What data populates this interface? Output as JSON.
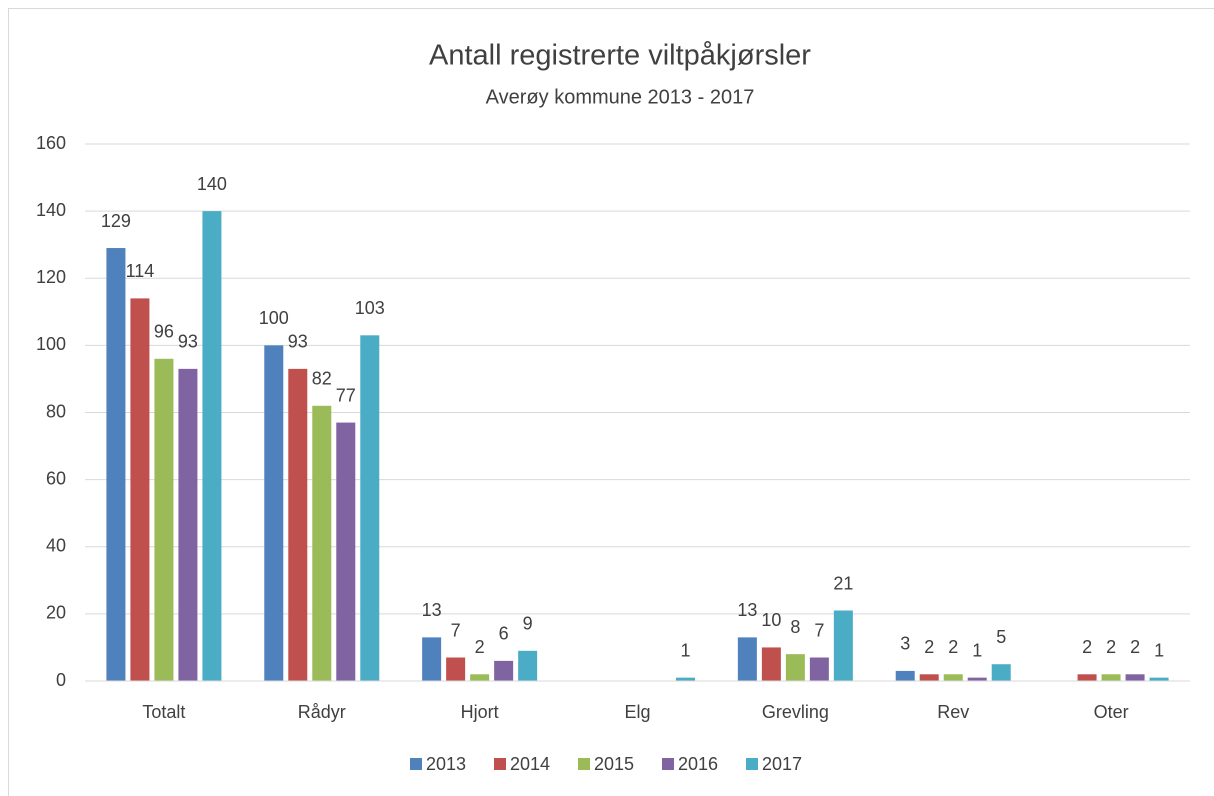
{
  "chart_data": {
    "type": "bar",
    "title": "Antall registrerte viltpåkjørsler",
    "subtitle": "Averøy kommune 2013 - 2017",
    "categories": [
      "Totalt",
      "Rådyr",
      "Hjort",
      "Elg",
      "Grevling",
      "Rev",
      "Oter"
    ],
    "series": [
      {
        "name": "2013",
        "color": "#4f81bd",
        "values": [
          129,
          100,
          13,
          null,
          13,
          3,
          null
        ]
      },
      {
        "name": "2014",
        "color": "#c0504d",
        "values": [
          114,
          93,
          7,
          null,
          10,
          2,
          2
        ]
      },
      {
        "name": "2015",
        "color": "#9bbb59",
        "values": [
          96,
          82,
          2,
          null,
          8,
          2,
          2
        ]
      },
      {
        "name": "2016",
        "color": "#8064a2",
        "values": [
          93,
          77,
          6,
          null,
          7,
          1,
          2
        ]
      },
      {
        "name": "2017",
        "color": "#4bacc6",
        "values": [
          140,
          103,
          9,
          1,
          21,
          5,
          1
        ]
      }
    ],
    "ylim": [
      0,
      160
    ],
    "yticks": [
      0,
      20,
      40,
      60,
      80,
      100,
      120,
      140,
      160
    ],
    "grid": true,
    "legend": "bottom"
  }
}
